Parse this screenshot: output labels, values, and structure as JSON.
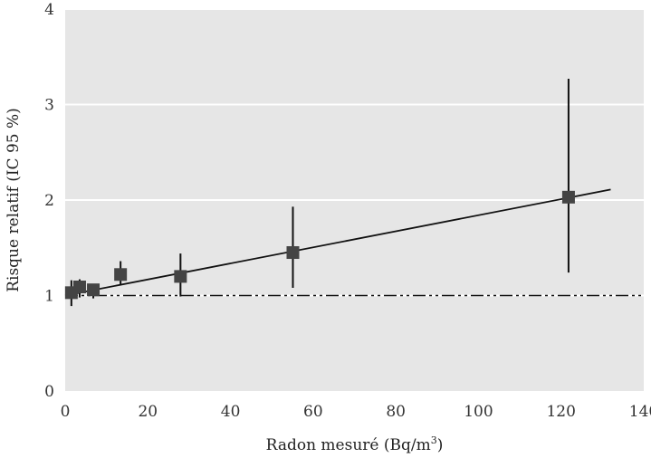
{
  "chart_data": {
    "type": "scatter",
    "title": "",
    "xlabel": "Radon mesuré (Bq/m",
    "xlabel_superscript": "3",
    "xlabel_suffix": ")",
    "ylabel": "Risque relatif (IC 95 %)",
    "xlim": [
      0,
      140
    ],
    "ylim": [
      0,
      4
    ],
    "x_ticks": [
      "0",
      "20",
      "40",
      "60",
      "80",
      "100",
      "120",
      "140"
    ],
    "y_ticks": [
      "0",
      "1",
      "2",
      "3",
      "4"
    ],
    "grid": "horizontal, white lines on light grey background",
    "colors": {
      "background": "#e6e6e6",
      "grid": "#ffffff",
      "markers": "#444444",
      "lines": "#111111"
    },
    "points": [
      {
        "x": 1.5,
        "y": 1.03,
        "lo": 0.89,
        "hi": 1.16
      },
      {
        "x": 3.5,
        "y": 1.09,
        "lo": 0.98,
        "hi": 1.17
      },
      {
        "x": 6.8,
        "y": 1.06,
        "lo": 0.97,
        "hi": 1.11
      },
      {
        "x": 13.4,
        "y": 1.22,
        "lo": 1.11,
        "hi": 1.36
      },
      {
        "x": 27.9,
        "y": 1.2,
        "lo": 0.99,
        "hi": 1.44
      },
      {
        "x": 55.1,
        "y": 1.45,
        "lo": 1.08,
        "hi": 1.93
      },
      {
        "x": 121.8,
        "y": 2.03,
        "lo": 1.24,
        "hi": 3.27
      }
    ],
    "trend_line": {
      "x": [
        0,
        132
      ],
      "y": [
        1.0,
        2.11
      ]
    },
    "reference_line": {
      "y": 1.0
    }
  }
}
